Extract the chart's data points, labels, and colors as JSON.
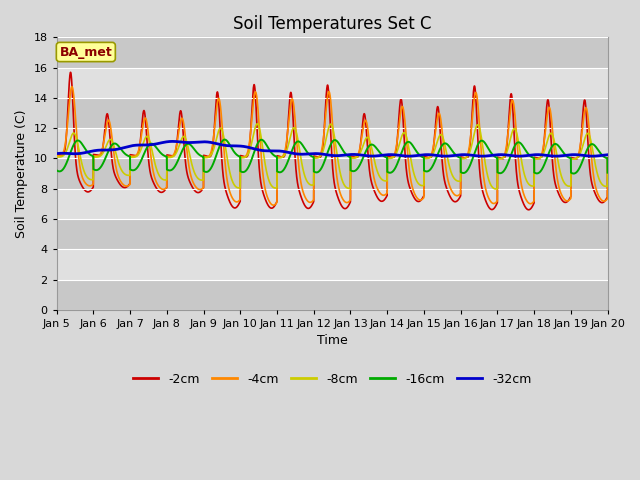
{
  "title": "Soil Temperatures Set C",
  "xlabel": "Time",
  "ylabel": "Soil Temperature (C)",
  "annotation": "BA_met",
  "ylim": [
    0,
    18
  ],
  "yticks": [
    0,
    2,
    4,
    6,
    8,
    10,
    12,
    14,
    16,
    18
  ],
  "xtick_labels": [
    "Jan 5",
    "Jan 6",
    "Jan 7",
    "Jan 8",
    "Jan 9",
    "Jan 10",
    "Jan 11",
    "Jan 12",
    "Jan 13",
    "Jan 14",
    "Jan 15",
    "Jan 16",
    "Jan 17",
    "Jan 18",
    "Jan 19",
    "Jan 20"
  ],
  "colors": {
    "-2cm": "#cc0000",
    "-4cm": "#ff8800",
    "-8cm": "#cccc00",
    "-16cm": "#00aa00",
    "-32cm": "#0000cc"
  },
  "legend_labels": [
    "-2cm",
    "-4cm",
    "-8cm",
    "-16cm",
    "-32cm"
  ],
  "fig_bg": "#d8d8d8",
  "plot_bg": "#d8d8d8",
  "band_light": "#e8e8e8",
  "title_fontsize": 12,
  "label_fontsize": 9,
  "tick_fontsize": 8
}
